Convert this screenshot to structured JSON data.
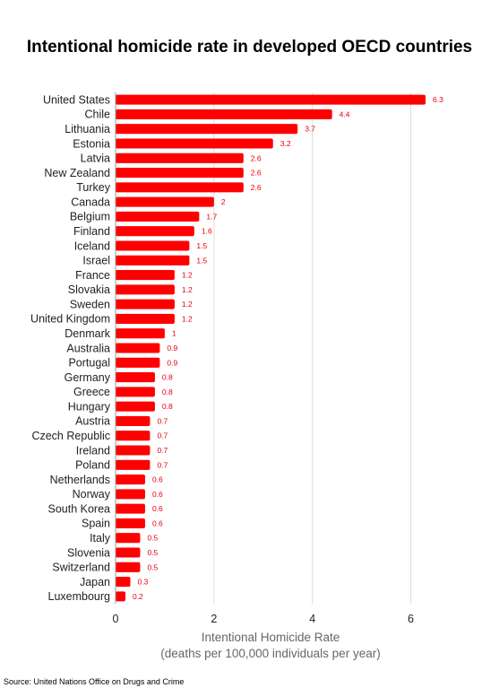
{
  "chart_data": {
    "type": "bar",
    "orientation": "horizontal",
    "title": "Intentional homicide rate in developed OECD countries",
    "xlabel_lines": [
      "Intentional Homicide Rate",
      "(deaths per 100,000 individuals per year)"
    ],
    "ylabel": "",
    "xlim": [
      0,
      6.3
    ],
    "xticks": [
      0,
      2,
      4,
      6
    ],
    "grid": true,
    "bar_color": "#ff0000",
    "label_color": "#e8000b",
    "categories": [
      "United States",
      "Chile",
      "Lithuania",
      "Estonia",
      "Latvia",
      "New Zealand",
      "Turkey",
      "Canada",
      "Belgium",
      "Finland",
      "Iceland",
      "Israel",
      "France",
      "Slovakia",
      "Sweden",
      "United Kingdom",
      "Denmark",
      "Australia",
      "Portugal",
      "Germany",
      "Greece",
      "Hungary",
      "Austria",
      "Czech Republic",
      "Ireland",
      "Poland",
      "Netherlands",
      "Norway",
      "South Korea",
      "Spain",
      "Italy",
      "Slovenia",
      "Switzerland",
      "Japan",
      "Luxembourg"
    ],
    "values": [
      6.3,
      4.4,
      3.7,
      3.2,
      2.6,
      2.6,
      2.6,
      2,
      1.7,
      1.6,
      1.5,
      1.5,
      1.2,
      1.2,
      1.2,
      1.2,
      1,
      0.9,
      0.9,
      0.8,
      0.8,
      0.8,
      0.7,
      0.7,
      0.7,
      0.7,
      0.6,
      0.6,
      0.6,
      0.6,
      0.5,
      0.5,
      0.5,
      0.3,
      0.2
    ],
    "value_labels": [
      "6.3",
      "4.4",
      "3.7",
      "3.2",
      "2.6",
      "2.6",
      "2.6",
      "2",
      "1.7",
      "1.6",
      "1.5",
      "1.5",
      "1.2",
      "1.2",
      "1.2",
      "1.2",
      "1",
      "0.9",
      "0.9",
      "0.8",
      "0.8",
      "0.8",
      "0.7",
      "0.7",
      "0.7",
      "0.7",
      "0.6",
      "0.6",
      "0.6",
      "0.6",
      "0.5",
      "0.5",
      "0.5",
      "0.3",
      "0.2"
    ],
    "source": "Source: United Nations Office on Drugs and Crime"
  }
}
